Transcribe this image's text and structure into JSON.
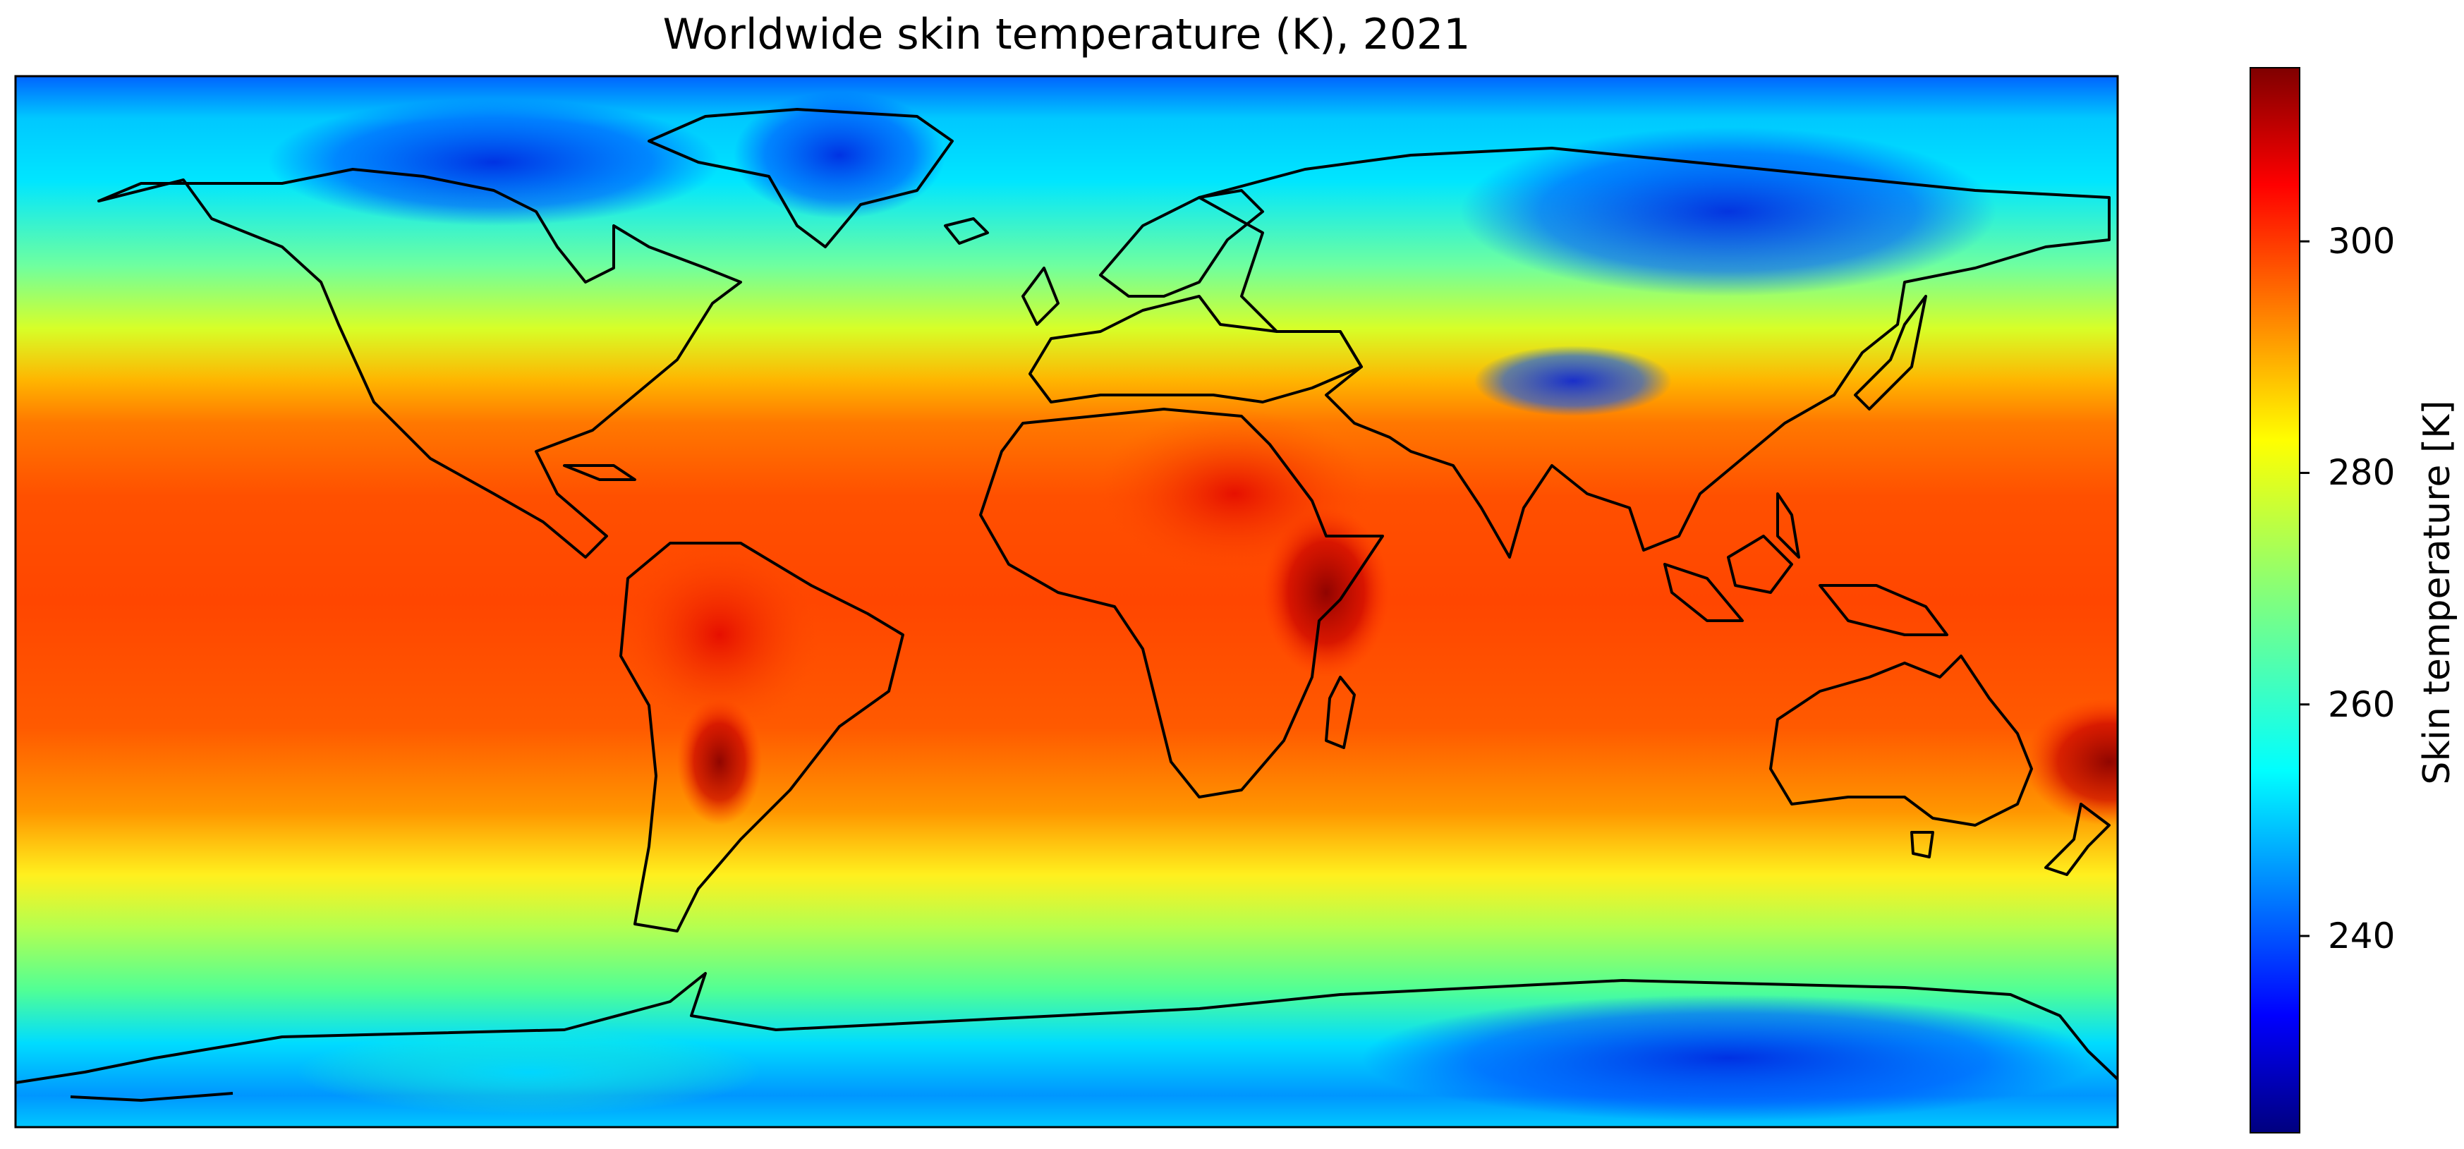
{
  "map": {
    "title": "Worldwide skin temperature (K), 2021",
    "colormap": "jet",
    "colors": {
      "polar_dark": "#00007f",
      "cold": "#0050ff",
      "cool": "#00c8ff",
      "mild": "#7dff7a",
      "warm": "#ffd200",
      "hot": "#ff5a00",
      "very_hot": "#c80000",
      "extreme": "#7f0000",
      "coastline": "#000000"
    },
    "colorbar": {
      "label": "Skin temperature [K]",
      "min": 223,
      "max": 315,
      "ticks": [
        {
          "value": 300,
          "label": "300"
        },
        {
          "value": 280,
          "label": "280"
        },
        {
          "value": 260,
          "label": "260"
        },
        {
          "value": 240,
          "label": "240"
        }
      ]
    }
  }
}
